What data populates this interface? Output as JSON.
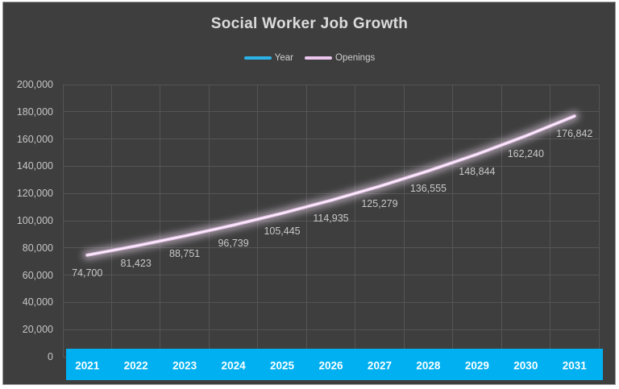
{
  "title": "Social Worker Job Growth",
  "legend": {
    "items": [
      {
        "label": "Year",
        "color": "#2bb3e8"
      },
      {
        "label": "Openings",
        "color": "#ecc6ee"
      }
    ]
  },
  "colors": {
    "chart_background": "#3e3e3e",
    "outer_border": "#98989b",
    "gridline": "#555555",
    "title_text": "#dcdcdc",
    "axis_text": "#c6c6c6",
    "data_label_text": "#c9c9c9",
    "year_band": "#00b0f0",
    "year_band_text": "#ffffff",
    "openings_line": "#e9c4ec",
    "openings_line_core": "#fdf3fe",
    "openings_glow": "rgba(247,228,250,0.5)"
  },
  "chart_data": {
    "type": "line",
    "title": "Social Worker Job Growth",
    "categories": [
      "2021",
      "2022",
      "2023",
      "2024",
      "2025",
      "2026",
      "2027",
      "2028",
      "2029",
      "2030",
      "2031"
    ],
    "series": [
      {
        "name": "Year",
        "color": "#00b0f0",
        "render": "bottom-band",
        "values": [
          2021,
          2022,
          2023,
          2024,
          2025,
          2026,
          2027,
          2028,
          2029,
          2030,
          2031
        ]
      },
      {
        "name": "Openings",
        "color": "#e9c4ec",
        "render": "line",
        "values": [
          74700,
          81423,
          88751,
          96739,
          105445,
          114935,
          125279,
          136555,
          148844,
          162240,
          176842
        ],
        "value_labels": [
          "74,700",
          "81,423",
          "88,751",
          "96,739",
          "105,445",
          "114,935",
          "125,279",
          "136,555",
          "148,844",
          "162,240",
          "176,842"
        ],
        "label_position": "below"
      }
    ],
    "xlabel": "",
    "ylabel": "",
    "ylim": [
      0,
      200000
    ],
    "ytick_step": 20000,
    "ytick_labels_top_to_bottom": [
      "200,000",
      "180,000",
      "160,000",
      "140,000",
      "120,000",
      "100,000",
      "80,000",
      "60,000",
      "40,000",
      "20,000",
      "0"
    ],
    "grid": true,
    "legend_position": "top"
  }
}
